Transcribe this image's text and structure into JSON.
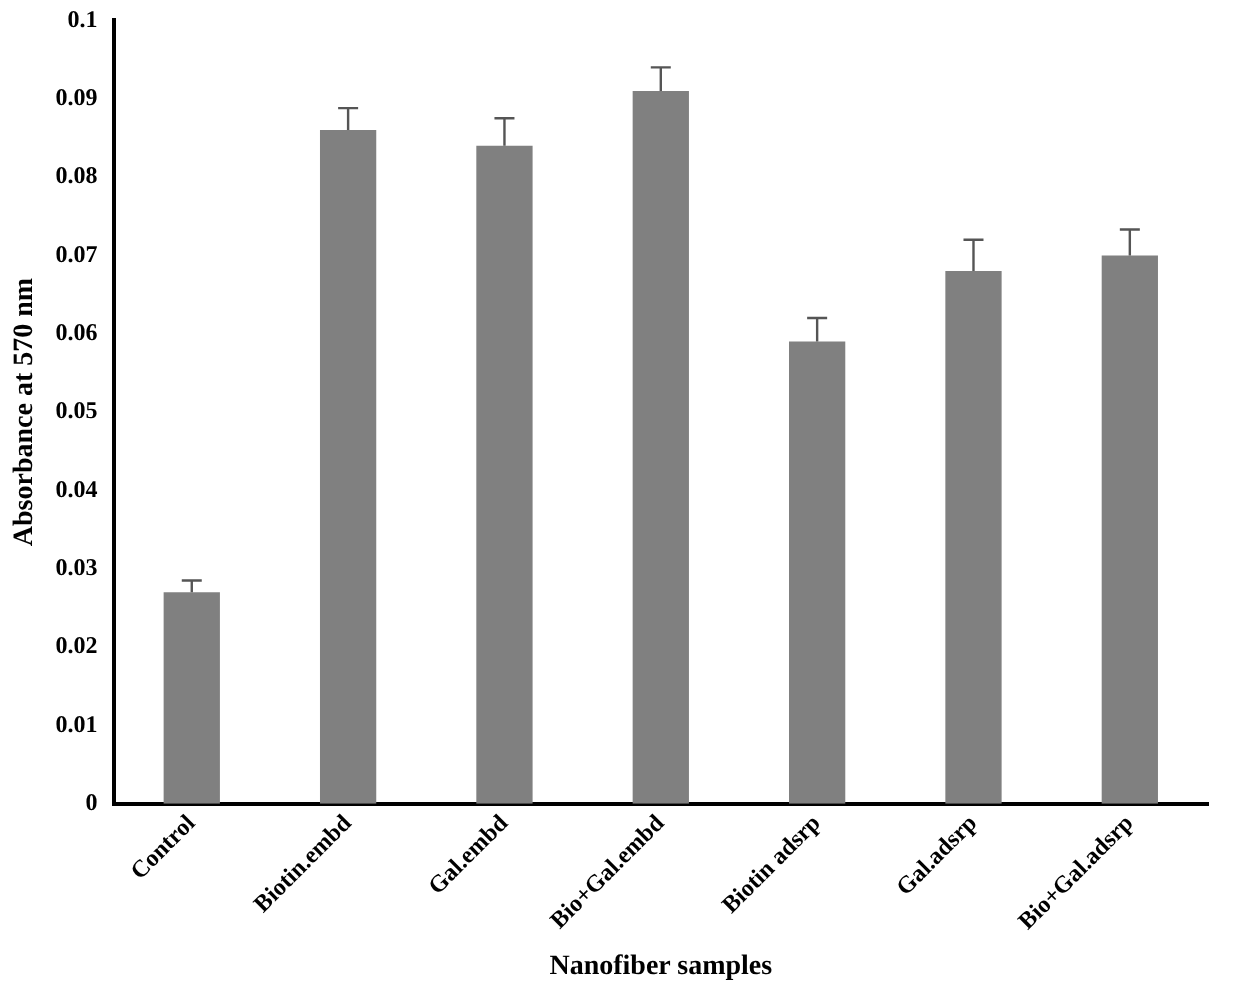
{
  "chart_data": {
    "type": "bar",
    "xlabel": "Nanofiber samples",
    "ylabel": "Absorbance at 570 nm",
    "categories": [
      "Control",
      "Biotin.embd",
      "Gal.embd",
      "Bio+Gal.embd",
      "Biotin adsrp",
      "Gal.adsrp",
      "Bio+Gal.adsrp"
    ],
    "values": [
      0.027,
      0.086,
      0.084,
      0.091,
      0.059,
      0.068,
      0.07
    ],
    "errors": [
      [
        0.027,
        0.0285
      ],
      [
        0.086,
        0.0888
      ],
      [
        0.084,
        0.0875
      ],
      [
        0.091,
        0.094
      ],
      [
        0.059,
        0.062
      ],
      [
        0.068,
        0.072
      ],
      [
        0.07,
        0.0733
      ]
    ],
    "color": "#808080",
    "ylim": [
      0,
      0.1
    ],
    "yticks": [
      0,
      0.01,
      0.02,
      0.03,
      0.04,
      0.05,
      0.06,
      0.07,
      0.08,
      0.09,
      0.1
    ],
    "grid": false,
    "legend": false
  }
}
